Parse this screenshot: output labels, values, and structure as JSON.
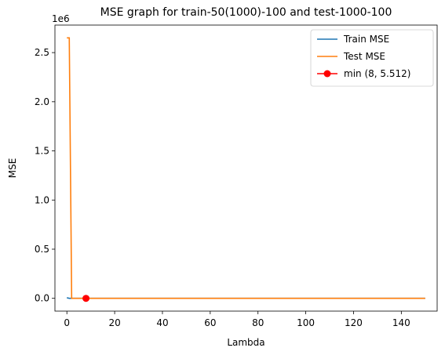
{
  "chart_data": {
    "type": "line",
    "title": "MSE graph for train-50(1000)-100 and test-1000-100",
    "xlabel": "Lambda",
    "ylabel": "MSE",
    "y_scale_label": "1e6",
    "xlim": [
      -5,
      155
    ],
    "ylim": [
      -0.13,
      2.78
    ],
    "y_display_factor": 1000000,
    "x_ticks": [
      0,
      20,
      40,
      60,
      80,
      100,
      120,
      140
    ],
    "x_tick_labels": [
      "0",
      "20",
      "40",
      "60",
      "80",
      "100",
      "120",
      "140"
    ],
    "y_ticks": [
      0.0,
      0.5,
      1.0,
      1.5,
      2.0,
      2.5
    ],
    "y_tick_labels": [
      "0.0",
      "0.5",
      "1.0",
      "1.5",
      "2.0",
      "2.5"
    ],
    "grid": false,
    "legend_position": "top-right",
    "series": [
      {
        "name": "Train MSE",
        "color": "#1f77b4",
        "marker": "none",
        "x": [
          0,
          1,
          2,
          150
        ],
        "y": [
          0.006,
          0.0,
          0.0,
          0.0
        ]
      },
      {
        "name": "Test MSE",
        "color": "#ff7f0e",
        "marker": "none",
        "x": [
          0,
          1,
          2,
          150
        ],
        "y": [
          2.65,
          2.65,
          0.0,
          0.0
        ]
      },
      {
        "name": "min (8, 5.512)",
        "color": "#ff0000",
        "marker": "circle",
        "x": [
          8
        ],
        "y": [
          5.5e-06
        ]
      }
    ]
  }
}
